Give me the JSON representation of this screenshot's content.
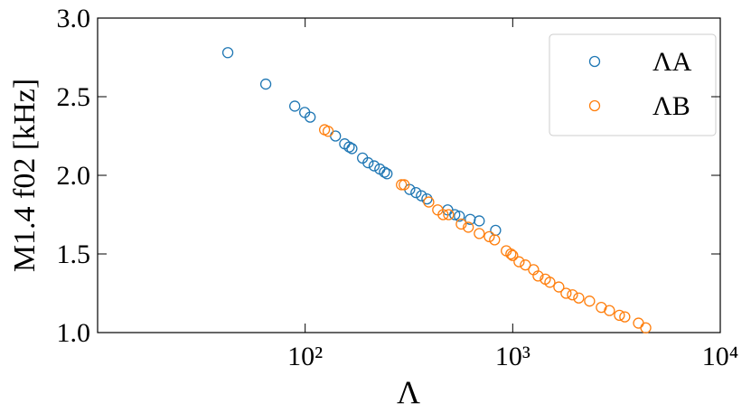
{
  "chart_data": {
    "type": "scatter",
    "xlabel": "Λ",
    "ylabel": "M1.4 f02 [kHz]",
    "xscale": "log",
    "xlim": [
      10,
      10000
    ],
    "xticks": [
      {
        "value": 100,
        "label": "10²"
      },
      {
        "value": 1000,
        "label": "10³"
      },
      {
        "value": 10000,
        "label": "10⁴"
      }
    ],
    "ylim": [
      1.0,
      3.0
    ],
    "yticks": [
      {
        "value": 1.0,
        "label": "1.0"
      },
      {
        "value": 1.5,
        "label": "1.5"
      },
      {
        "value": 2.0,
        "label": "2.0"
      },
      {
        "value": 2.5,
        "label": "2.5"
      },
      {
        "value": 3.0,
        "label": "3.0"
      }
    ],
    "legend": "upper right",
    "series": [
      {
        "name": "ΛA",
        "color": "#1f77b4",
        "x": [
          42.4,
          64.6,
          89.1,
          99.5,
          105.7,
          140,
          155,
          163,
          168,
          189,
          201,
          215,
          229,
          241,
          248,
          319,
          342,
          363,
          386,
          486,
          526,
          553,
          624,
          690,
          827
        ],
        "values": [
          2.78,
          2.58,
          2.44,
          2.4,
          2.37,
          2.25,
          2.2,
          2.18,
          2.17,
          2.11,
          2.08,
          2.06,
          2.04,
          2.02,
          2.01,
          1.91,
          1.89,
          1.87,
          1.85,
          1.78,
          1.75,
          1.74,
          1.72,
          1.71,
          1.65
        ]
      },
      {
        "name": "ΛB",
        "color": "#ff7f0e",
        "x": [
          124,
          129,
          291,
          300,
          394,
          435,
          462,
          491,
          565,
          611,
          690,
          771,
          818,
          931,
          980,
          1000,
          1073,
          1151,
          1260,
          1325,
          1436,
          1510,
          1668,
          1807,
          1940,
          2080,
          2346,
          2672,
          2924,
          3266,
          3467,
          4036,
          4375
        ],
        "values": [
          2.29,
          2.28,
          1.94,
          1.94,
          1.83,
          1.78,
          1.75,
          1.75,
          1.69,
          1.67,
          1.63,
          1.61,
          1.59,
          1.52,
          1.5,
          1.49,
          1.45,
          1.43,
          1.4,
          1.36,
          1.34,
          1.32,
          1.29,
          1.25,
          1.24,
          1.22,
          1.2,
          1.16,
          1.14,
          1.11,
          1.1,
          1.06,
          1.03
        ]
      }
    ]
  }
}
